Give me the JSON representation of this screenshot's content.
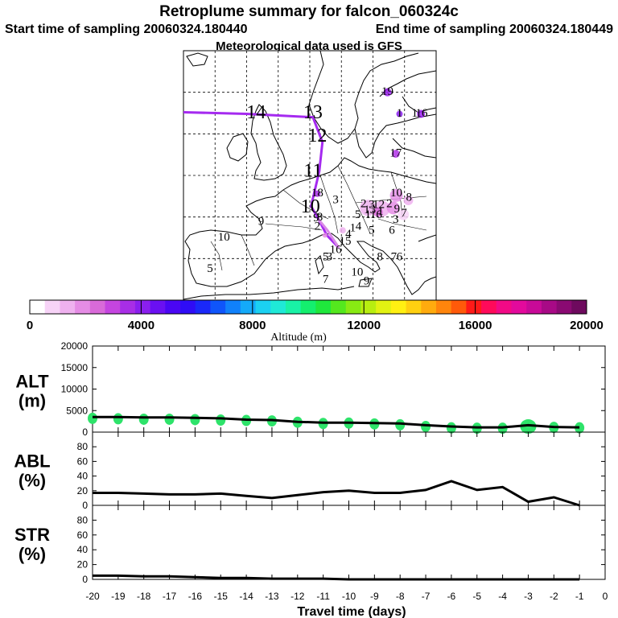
{
  "header": {
    "title": "Retroplume summary for falcon_060324c",
    "start_time": "Start time of sampling 20060324.180440",
    "end_time": "End time of sampling 20060324.180449",
    "met_data": "Meteorological data used is GFS"
  },
  "colorbar": {
    "label": "Altitude (m)",
    "ticks": [
      "0",
      "4000",
      "8000",
      "12000",
      "16000",
      "20000"
    ],
    "colors": [
      "#ffffff",
      "#f7d3f7",
      "#efb1ef",
      "#e58ce5",
      "#d96ad9",
      "#c545e0",
      "#a82ee6",
      "#8a1fee",
      "#6a10f2",
      "#4a06f4",
      "#2f0cf6",
      "#1a28f9",
      "#0f55fb",
      "#1081fb",
      "#14aaf9",
      "#1bd1f2",
      "#1fe9d7",
      "#19f2a6",
      "#14ef6e",
      "#1fe83c",
      "#54e81e",
      "#88ea13",
      "#b8ee10",
      "#e2f212",
      "#fff012",
      "#ffd010",
      "#ffab0e",
      "#ff850c",
      "#ff5a0a",
      "#ff1a18",
      "#ff0a5a",
      "#f20a86",
      "#e30a9c",
      "#c80a98",
      "#a80a86",
      "#8a0a72",
      "#6e0a5e"
    ]
  },
  "map": {
    "labels": [
      {
        "t": "19",
        "lon": 12.3,
        "lat": 65.0
      },
      {
        "t": "14",
        "lon": -8.5,
        "lat": 62.4
      },
      {
        "t": "13",
        "lon": 0.5,
        "lat": 62.4
      },
      {
        "t": "1",
        "lon": 14.2,
        "lat": 62.4
      },
      {
        "t": "1",
        "lon": 16.6,
        "lat": 62.4
      },
      {
        "t": "16",
        "lon": 17.7,
        "lat": 62.4
      },
      {
        "t": "12",
        "lon": 1.2,
        "lat": 59.6
      },
      {
        "t": "17",
        "lon": 13.6,
        "lat": 57.6
      },
      {
        "t": "11",
        "lon": 0.5,
        "lat": 55.4
      },
      {
        "t": "18",
        "lon": 1.2,
        "lat": 52.8
      },
      {
        "t": "3",
        "lon": 4.1,
        "lat": 52.0
      },
      {
        "t": "10",
        "lon": 13.7,
        "lat": 52.8
      },
      {
        "t": "8",
        "lon": 15.7,
        "lat": 52.3
      },
      {
        "t": "10",
        "lon": 0.1,
        "lat": 51.1
      },
      {
        "t": "2",
        "lon": 8.5,
        "lat": 51.5
      },
      {
        "t": "3",
        "lon": 9.8,
        "lat": 51.4
      },
      {
        "t": "12",
        "lon": 10.9,
        "lat": 51.4
      },
      {
        "t": "2",
        "lon": 12.6,
        "lat": 51.5
      },
      {
        "t": "13",
        "lon": 9.5,
        "lat": 50.8
      },
      {
        "t": "1",
        "lon": 11.2,
        "lat": 50.6
      },
      {
        "t": "9",
        "lon": 13.8,
        "lat": 50.9
      },
      {
        "t": "7",
        "lon": 14.9,
        "lat": 50.4
      },
      {
        "t": "5",
        "lon": 7.6,
        "lat": 50.2
      },
      {
        "t": "1",
        "lon": 9.2,
        "lat": 50.2
      },
      {
        "t": "16",
        "lon": 10.5,
        "lat": 50.2
      },
      {
        "t": "9",
        "lon": 1.0,
        "lat": 49.8
      },
      {
        "t": "8",
        "lon": 1.6,
        "lat": 49.9
      },
      {
        "t": "9",
        "lon": -7.7,
        "lat": 49.4
      },
      {
        "t": "3",
        "lon": 13.6,
        "lat": 49.6
      },
      {
        "t": "2",
        "lon": 1.2,
        "lat": 48.8
      },
      {
        "t": "4",
        "lon": 7.7,
        "lat": 48.8
      },
      {
        "t": "1",
        "lon": 6.8,
        "lat": 48.6
      },
      {
        "t": "5",
        "lon": 9.8,
        "lat": 48.3
      },
      {
        "t": "6",
        "lon": 13.0,
        "lat": 48.3
      },
      {
        "t": "4",
        "lon": 6.1,
        "lat": 47.9
      },
      {
        "t": "10",
        "lon": -13.6,
        "lat": 47.5
      },
      {
        "t": "15",
        "lon": 5.6,
        "lat": 47.0
      },
      {
        "t": "16",
        "lon": 4.1,
        "lat": 46.0
      },
      {
        "t": "5",
        "lon": 2.5,
        "lat": 45.1
      },
      {
        "t": "3",
        "lon": 3.1,
        "lat": 45.1
      },
      {
        "t": "8",
        "lon": 11.1,
        "lat": 45.1
      },
      {
        "t": "7",
        "lon": 13.3,
        "lat": 45.1
      },
      {
        "t": "6",
        "lon": 14.2,
        "lat": 45.1
      },
      {
        "t": "5",
        "lon": -15.8,
        "lat": 43.7
      },
      {
        "t": "10",
        "lon": 7.5,
        "lat": 43.3
      },
      {
        "t": "7",
        "lon": 2.5,
        "lat": 42.4
      },
      {
        "t": "9",
        "lon": 9.0,
        "lat": 42.2
      }
    ]
  },
  "chart_data": [
    {
      "type": "scatter",
      "name": "ALT (m)",
      "ylabel": "ALT",
      "yunit": "(m)",
      "ylim": [
        0,
        20000
      ],
      "yticks": [
        0,
        5000,
        10000,
        15000,
        20000
      ],
      "x": [
        -20,
        -19,
        -18,
        -17,
        -16,
        -15,
        -14,
        -13,
        -12,
        -11,
        -10,
        -9,
        -8,
        -7,
        -6,
        -5,
        -4,
        -3,
        -2,
        -1
      ],
      "values": [
        3200,
        3100,
        3000,
        3000,
        2900,
        2800,
        2700,
        2600,
        2300,
        2000,
        2100,
        1900,
        1700,
        1300,
        1000,
        900,
        900,
        1300,
        1100,
        1000
      ],
      "line_x": [
        -20,
        -19,
        -18,
        -17,
        -16,
        -15,
        -14,
        -13,
        -12,
        -11,
        -10,
        -9,
        -8,
        -7,
        -6,
        -5,
        -4,
        -3,
        -2,
        -1
      ],
      "line_y": [
        3500,
        3500,
        3400,
        3400,
        3300,
        3200,
        2900,
        2800,
        2400,
        2200,
        2200,
        2100,
        2000,
        1600,
        1300,
        1100,
        1100,
        1600,
        1200,
        1100
      ]
    },
    {
      "type": "line",
      "name": "ABL (%)",
      "ylabel": "ABL",
      "yunit": "(%)",
      "ylim": [
        0,
        100
      ],
      "yticks": [
        0,
        20,
        40,
        60,
        80
      ],
      "x": [
        -20,
        -19,
        -18,
        -17,
        -16,
        -15,
        -14,
        -13,
        -12,
        -11,
        -10,
        -9,
        -8,
        -7,
        -6,
        -5,
        -4,
        -3,
        -2,
        -1
      ],
      "values": [
        17,
        17,
        16,
        15,
        15,
        16,
        13,
        10,
        14,
        18,
        20,
        17,
        17,
        21,
        33,
        21,
        25,
        5,
        11,
        0
      ]
    },
    {
      "type": "line",
      "name": "STR (%)",
      "ylabel": "STR",
      "yunit": "(%)",
      "ylim": [
        0,
        100
      ],
      "yticks": [
        0,
        20,
        40,
        60,
        80
      ],
      "x": [
        -20,
        -19,
        -18,
        -17,
        -16,
        -15,
        -14,
        -13,
        -12,
        -11,
        -10,
        -9,
        -8,
        -7,
        -6,
        -5,
        -4,
        -3,
        -2,
        -1
      ],
      "values": [
        5,
        5,
        4,
        4,
        3,
        2,
        2,
        1,
        1,
        1,
        0,
        0,
        0,
        0,
        0,
        0,
        0,
        0,
        0,
        0
      ]
    }
  ],
  "xaxis": {
    "label": "Travel time (days)",
    "range": [
      -20,
      0
    ],
    "ticks": [
      "-20",
      "-19",
      "-18",
      "-17",
      "-16",
      "-15",
      "-14",
      "-13",
      "-12",
      "-11",
      "-10",
      "-9",
      "-8",
      "-7",
      "-6",
      "-5",
      "-4",
      "-3",
      "-2",
      "-1",
      "0"
    ]
  }
}
